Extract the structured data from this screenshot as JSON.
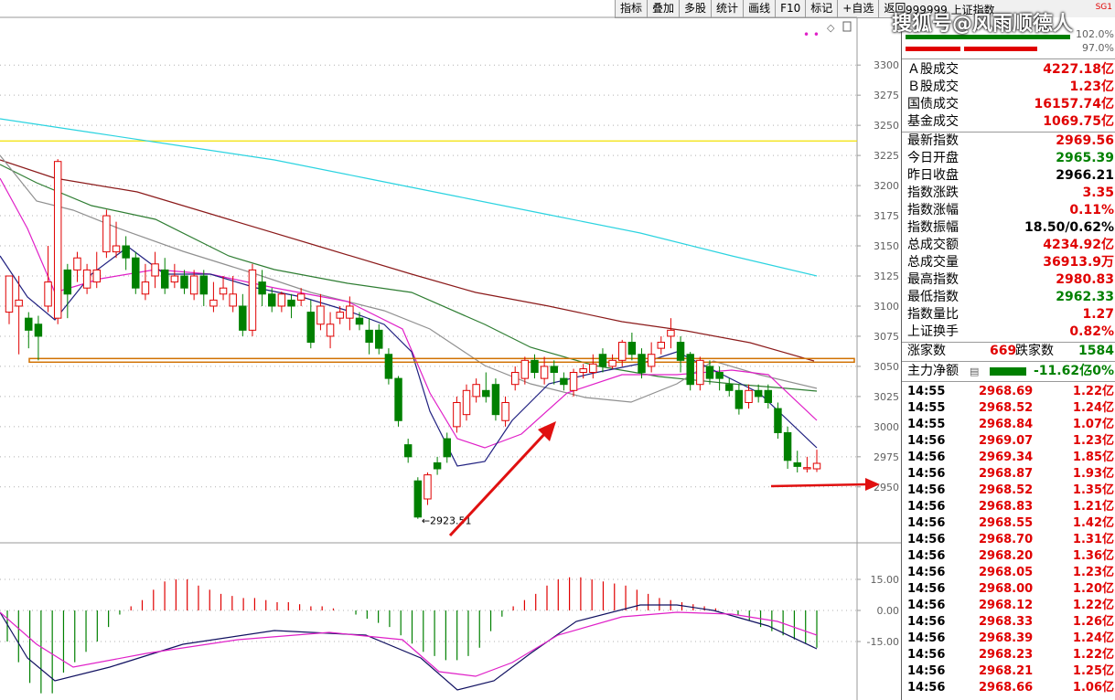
{
  "toolbar": [
    "指标",
    "叠加",
    "多股",
    "统计",
    "画线",
    "F10",
    "标记",
    "+自选",
    "返回"
  ],
  "header": {
    "code_title": "999999 上证指数",
    "badge": "SG1",
    "top_val1": "102.0%",
    "top_val2": "97.0%"
  },
  "watermark": "搜狐号@风雨顺德人",
  "main_axis": [
    "3300",
    "3275",
    "3250",
    "3225",
    "3200",
    "3175",
    "3150",
    "3125",
    "3100",
    "3075",
    "3050",
    "3025",
    "3000",
    "2975",
    "2950"
  ],
  "low_label": "2923.51",
  "sub_axis": [
    "15.00",
    "0.00",
    "-15.00"
  ],
  "quote": [
    {
      "label": "Ａ股成交",
      "value": "4227.18亿",
      "color": "red"
    },
    {
      "label": "Ｂ股成交",
      "value": "1.23亿",
      "color": "red"
    },
    {
      "label": "国债成交",
      "value": "16157.74亿",
      "color": "red"
    },
    {
      "label": "基金成交",
      "value": "1069.75亿",
      "color": "red"
    },
    {
      "label": "最新指数",
      "value": "2969.56",
      "color": "red"
    },
    {
      "label": "今日开盘",
      "value": "2965.39",
      "color": "green"
    },
    {
      "label": "昨日收盘",
      "value": "2966.21",
      "color": "black"
    },
    {
      "label": "指数涨跌",
      "value": "3.35",
      "color": "red"
    },
    {
      "label": "指数涨幅",
      "value": "0.11%",
      "color": "red"
    },
    {
      "label": "指数振幅",
      "value": "18.50/0.62%",
      "color": "black"
    },
    {
      "label": "总成交额",
      "value": "4234.92亿",
      "color": "red"
    },
    {
      "label": "总成交量",
      "value": "36913.9万",
      "color": "red"
    },
    {
      "label": "最高指数",
      "value": "2980.83",
      "color": "red"
    },
    {
      "label": "最低指数",
      "value": "2962.33",
      "color": "green"
    },
    {
      "label": "指数量比",
      "value": "1.27",
      "color": "red"
    },
    {
      "label": "上证换手",
      "value": "0.82%",
      "color": "red"
    }
  ],
  "breadth": {
    "up_label": "涨家数",
    "up": "669",
    "down_label": "跌家数",
    "down": "1584"
  },
  "flow": {
    "label": "主力净额",
    "value": "-11.62亿",
    "pct": "-0%"
  },
  "ticks": [
    {
      "t": "14:55",
      "p": "2968.69",
      "v": "1.22亿"
    },
    {
      "t": "14:55",
      "p": "2968.52",
      "v": "1.24亿"
    },
    {
      "t": "14:55",
      "p": "2968.84",
      "v": "1.07亿"
    },
    {
      "t": "14:56",
      "p": "2969.07",
      "v": "1.23亿"
    },
    {
      "t": "14:56",
      "p": "2969.34",
      "v": "1.85亿"
    },
    {
      "t": "14:56",
      "p": "2968.87",
      "v": "1.93亿"
    },
    {
      "t": "14:56",
      "p": "2968.52",
      "v": "1.35亿"
    },
    {
      "t": "14:56",
      "p": "2968.83",
      "v": "1.21亿"
    },
    {
      "t": "14:56",
      "p": "2968.55",
      "v": "1.42亿"
    },
    {
      "t": "14:56",
      "p": "2968.70",
      "v": "1.31亿"
    },
    {
      "t": "14:56",
      "p": "2968.20",
      "v": "1.36亿"
    },
    {
      "t": "14:56",
      "p": "2968.05",
      "v": "1.23亿"
    },
    {
      "t": "14:56",
      "p": "2968.00",
      "v": "1.20亿"
    },
    {
      "t": "14:56",
      "p": "2968.12",
      "v": "1.22亿"
    },
    {
      "t": "14:56",
      "p": "2968.33",
      "v": "1.26亿"
    },
    {
      "t": "14:56",
      "p": "2968.39",
      "v": "1.24亿"
    },
    {
      "t": "14:56",
      "p": "2968.23",
      "v": "1.22亿"
    },
    {
      "t": "14:56",
      "p": "2968.21",
      "v": "1.25亿"
    },
    {
      "t": "14:56",
      "p": "2968.66",
      "v": "1.06亿"
    }
  ],
  "chart_data": {
    "type": "candlestick",
    "ylim": [
      2940,
      3310
    ],
    "support_line": 3055,
    "resistance_line": 3237,
    "candles": [
      [
        3095,
        3125,
        3105,
        3085
      ],
      [
        3100,
        3105,
        3125,
        3060
      ],
      [
        3090,
        3080,
        3095,
        3065
      ],
      [
        3085,
        3075,
        3092,
        3055
      ],
      [
        3100,
        3120,
        3150,
        3095
      ],
      [
        3090,
        3220,
        3222,
        3085
      ],
      [
        3130,
        3110,
        3135,
        3090
      ],
      [
        3130,
        3140,
        3145,
        3120
      ],
      [
        3115,
        3130,
        3135,
        3110
      ],
      [
        3120,
        3130,
        3145,
        3115
      ],
      [
        3145,
        3175,
        3180,
        3140
      ],
      [
        3145,
        3150,
        3170,
        3140
      ],
      [
        3150,
        3140,
        3158,
        3130
      ],
      [
        3140,
        3115,
        3145,
        3110
      ],
      [
        3110,
        3120,
        3135,
        3105
      ],
      [
        3125,
        3135,
        3145,
        3115
      ],
      [
        3130,
        3115,
        3140,
        3110
      ],
      [
        3120,
        3125,
        3135,
        3115
      ],
      [
        3125,
        3115,
        3130,
        3110
      ],
      [
        3110,
        3125,
        3130,
        3105
      ],
      [
        3125,
        3110,
        3130,
        3100
      ],
      [
        3100,
        3105,
        3120,
        3095
      ],
      [
        3110,
        3115,
        3125,
        3105
      ],
      [
        3100,
        3110,
        3125,
        3095
      ],
      [
        3100,
        3080,
        3110,
        3075
      ],
      [
        3080,
        3130,
        3135,
        3075
      ],
      [
        3120,
        3110,
        3130,
        3100
      ],
      [
        3110,
        3100,
        3115,
        3095
      ],
      [
        3100,
        3110,
        3112,
        3095
      ],
      [
        3105,
        3100,
        3110,
        3090
      ],
      [
        3105,
        3110,
        3115,
        3100
      ],
      [
        3095,
        3070,
        3105,
        3065
      ],
      [
        3085,
        3100,
        3110,
        3080
      ],
      [
        3075,
        3085,
        3095,
        3065
      ],
      [
        3090,
        3095,
        3100,
        3085
      ],
      [
        3090,
        3100,
        3108,
        3080
      ],
      [
        3090,
        3085,
        3095,
        3080
      ],
      [
        3080,
        3070,
        3090,
        3060
      ],
      [
        3080,
        3065,
        3085,
        3060
      ],
      [
        3060,
        3040,
        3065,
        3035
      ],
      [
        3040,
        3005,
        3042,
        3000
      ],
      [
        2985,
        2975,
        2990,
        2970
      ],
      [
        2955,
        2925,
        2958,
        2923.51
      ],
      [
        2940,
        2960,
        2962,
        2935
      ],
      [
        2970,
        2965,
        2975,
        2960
      ],
      [
        2990,
        2975,
        2995,
        2970
      ],
      [
        3000,
        3020,
        3025,
        2995
      ],
      [
        3010,
        3030,
        3035,
        3005
      ],
      [
        3025,
        3035,
        3040,
        3020
      ],
      [
        3030,
        3025,
        3045,
        3020
      ],
      [
        3035,
        3010,
        3040,
        3005
      ],
      [
        3005,
        3020,
        3025,
        3000
      ],
      [
        3035,
        3045,
        3050,
        3030
      ],
      [
        3040,
        3055,
        3058,
        3035
      ],
      [
        3055,
        3045,
        3060,
        3040
      ],
      [
        3040,
        3050,
        3058,
        3035
      ],
      [
        3050,
        3045,
        3055,
        3035
      ],
      [
        3040,
        3035,
        3045,
        3030
      ],
      [
        3030,
        3045,
        3048,
        3025
      ],
      [
        3045,
        3048,
        3052,
        3040
      ],
      [
        3045,
        3052,
        3060,
        3040
      ],
      [
        3060,
        3050,
        3065,
        3045
      ],
      [
        3050,
        3055,
        3060,
        3048
      ],
      [
        3055,
        3070,
        3072,
        3050
      ],
      [
        3070,
        3060,
        3078,
        3055
      ],
      [
        3060,
        3045,
        3065,
        3040
      ],
      [
        3050,
        3060,
        3070,
        3045
      ],
      [
        3065,
        3070,
        3075,
        3060
      ],
      [
        3075,
        3080,
        3090,
        3065
      ],
      [
        3070,
        3055,
        3075,
        3045
      ],
      [
        3060,
        3035,
        3062,
        3030
      ],
      [
        3035,
        3055,
        3058,
        3030
      ],
      [
        3050,
        3040,
        3055,
        3035
      ],
      [
        3045,
        3040,
        3050,
        3030
      ],
      [
        3035,
        3030,
        3040,
        3025
      ],
      [
        3030,
        3015,
        3035,
        3010
      ],
      [
        3020,
        3030,
        3035,
        3015
      ],
      [
        3030,
        3025,
        3035,
        3020
      ],
      [
        3030,
        3020,
        3035,
        3015
      ],
      [
        3015,
        2995,
        3020,
        2990
      ],
      [
        2995,
        2972,
        3000,
        2965
      ],
      [
        2970,
        2967,
        2980,
        2962
      ],
      [
        2965,
        2966,
        2975,
        2962
      ],
      [
        2965,
        2969.56,
        2980.83,
        2962.33
      ]
    ]
  }
}
